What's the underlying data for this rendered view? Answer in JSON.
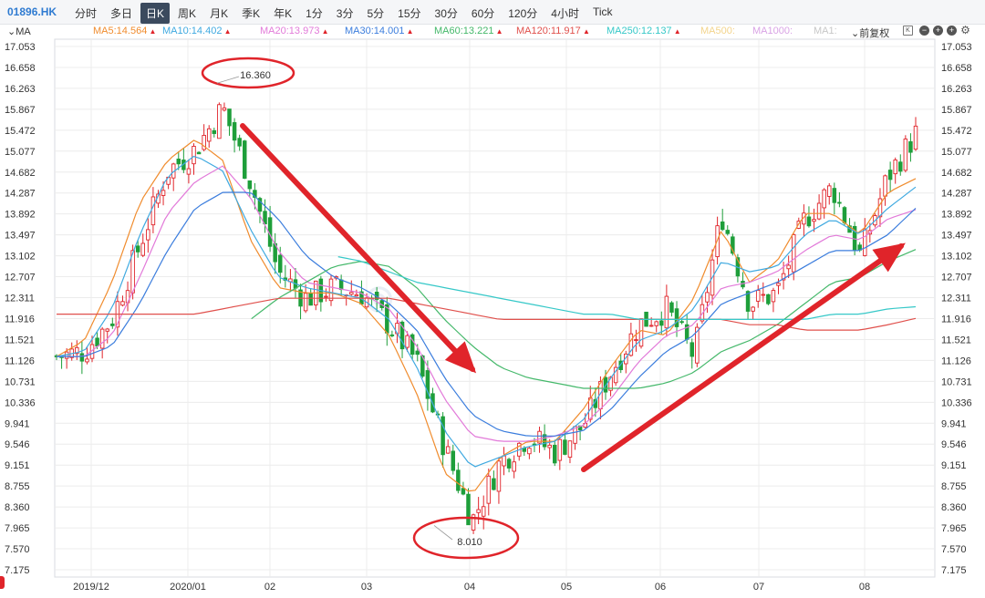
{
  "ticker": "01896.HK",
  "tabs": [
    "分时",
    "多日",
    "日K",
    "周K",
    "月K",
    "季K",
    "年K",
    "1分",
    "3分",
    "5分",
    "15分",
    "30分",
    "60分",
    "120分",
    "4小时",
    "Tick"
  ],
  "active_tab": "日K",
  "ma_toggle": "MA",
  "fq_label": "前复权",
  "ma_legend": [
    {
      "text": "MA5:14.564",
      "color": "#f08c2e",
      "arrow": "up"
    },
    {
      "text": "MA10:14.402",
      "color": "#3fa9e0",
      "arrow": "up"
    },
    {
      "text": "MA20:13.973",
      "color": "#e27ad9",
      "arrow": "up"
    },
    {
      "text": "MA30:14.001",
      "color": "#3b7ddd",
      "arrow": "up"
    },
    {
      "text": "MA60:13.221",
      "color": "#44b86a",
      "arrow": "up"
    },
    {
      "text": "MA120:11.917",
      "color": "#e0504c",
      "arrow": "up"
    },
    {
      "text": "MA250:12.137",
      "color": "#36c8c8",
      "arrow": "up"
    },
    {
      "text": "MA500:",
      "color": "#f3d48c",
      "arrow": ""
    },
    {
      "text": "MA1000:",
      "color": "#d9a3e5",
      "arrow": ""
    },
    {
      "text": "MA1:",
      "color": "#c7c7c7",
      "arrow": ""
    }
  ],
  "annotations": {
    "high": "16.360",
    "low": "8.010"
  },
  "colors": {
    "up": "#e0242a",
    "down": "#1e9e3a",
    "grid": "#ececec",
    "arrow": "#e0242a"
  },
  "chart_data": {
    "type": "candlestick",
    "yticks": [
      "17.053",
      "16.658",
      "16.263",
      "15.867",
      "15.472",
      "15.077",
      "14.682",
      "14.287",
      "13.892",
      "13.497",
      "13.102",
      "12.707",
      "12.311",
      "11.916",
      "11.521",
      "11.126",
      "10.731",
      "10.336",
      "9.941",
      "9.546",
      "9.151",
      "8.755",
      "8.360",
      "7.965",
      "7.570",
      "7.175"
    ],
    "ylim": [
      7.175,
      17.053
    ],
    "xticks": [
      "2019/12",
      "2020/01",
      "02",
      "03",
      "04",
      "05",
      "06",
      "07",
      "08"
    ],
    "approx_close_path": [
      11.2,
      11.3,
      11.9,
      13.3,
      14.7,
      15.1,
      15.9,
      14.5,
      12.8,
      12.3,
      12.5,
      12.4,
      11.8,
      11.1,
      9.5,
      8.1,
      9.2,
      9.7,
      9.4,
      9.9,
      10.9,
      11.8,
      12.1,
      11.2,
      13.9,
      12.2,
      12.4,
      13.8,
      14.4,
      13.1,
      14.6,
      15.4
    ],
    "series": [
      {
        "name": "MA5",
        "values": [
          11.2,
          11.5,
          12.6,
          14.1,
          14.9,
          15.3,
          14.9,
          13.4,
          12.5,
          12.4,
          12.4,
          12.2,
          11.6,
          10.5,
          9.0,
          8.6,
          9.3,
          9.6,
          9.6,
          10.2,
          11.0,
          11.7,
          11.6,
          12.3,
          13.6,
          12.6,
          13.0,
          13.9,
          13.9,
          13.5,
          14.3,
          14.56
        ]
      },
      {
        "name": "MA10",
        "values": [
          11.2,
          11.3,
          12.1,
          13.5,
          14.6,
          15.0,
          14.7,
          13.6,
          12.7,
          12.5,
          12.4,
          12.3,
          11.9,
          11.0,
          9.8,
          9.1,
          9.3,
          9.5,
          9.6,
          10.0,
          10.8,
          11.5,
          11.7,
          12.1,
          13.0,
          12.8,
          12.9,
          13.5,
          13.8,
          13.5,
          14.0,
          14.4
        ]
      },
      {
        "name": "MA20",
        "values": [
          11.2,
          11.2,
          11.6,
          12.7,
          13.9,
          14.5,
          14.8,
          14.2,
          13.2,
          12.6,
          12.5,
          12.4,
          12.1,
          11.4,
          10.4,
          9.7,
          9.6,
          9.6,
          9.7,
          9.9,
          10.4,
          11.1,
          11.6,
          11.8,
          12.5,
          12.6,
          12.8,
          13.2,
          13.5,
          13.4,
          13.8,
          13.97
        ]
      },
      {
        "name": "MA30",
        "values": [
          11.2,
          11.2,
          11.4,
          12.2,
          13.2,
          14.0,
          14.3,
          14.3,
          13.8,
          13.1,
          12.7,
          12.5,
          12.2,
          11.7,
          10.8,
          10.1,
          9.8,
          9.7,
          9.7,
          9.8,
          10.2,
          10.8,
          11.3,
          11.6,
          12.2,
          12.4,
          12.6,
          12.9,
          13.2,
          13.2,
          13.5,
          14.0
        ]
      },
      {
        "name": "MA60",
        "values": [
          null,
          null,
          null,
          null,
          null,
          null,
          null,
          11.9,
          12.3,
          12.6,
          12.9,
          13.0,
          12.9,
          12.5,
          11.9,
          11.4,
          11.0,
          10.8,
          10.7,
          10.6,
          10.6,
          10.6,
          10.7,
          10.9,
          11.3,
          11.5,
          11.8,
          12.2,
          12.6,
          12.7,
          13.0,
          13.22
        ]
      },
      {
        "name": "MA120",
        "values": [
          12.0,
          12.0,
          12.0,
          12.0,
          12.0,
          12.0,
          12.1,
          12.2,
          12.3,
          12.3,
          12.3,
          12.3,
          12.3,
          12.2,
          12.1,
          12.0,
          11.9,
          11.9,
          11.9,
          11.9,
          11.9,
          11.9,
          11.9,
          11.9,
          11.9,
          11.8,
          11.8,
          11.7,
          11.7,
          11.7,
          11.8,
          11.92
        ]
      },
      {
        "name": "MA250",
        "values": [
          null,
          null,
          null,
          null,
          null,
          null,
          null,
          null,
          null,
          null,
          13.1,
          13.0,
          12.8,
          12.6,
          12.5,
          12.4,
          12.3,
          12.2,
          12.1,
          12.0,
          12.0,
          11.9,
          11.9,
          11.9,
          11.9,
          11.9,
          11.9,
          11.9,
          12.0,
          12.0,
          12.1,
          12.14
        ]
      }
    ]
  }
}
